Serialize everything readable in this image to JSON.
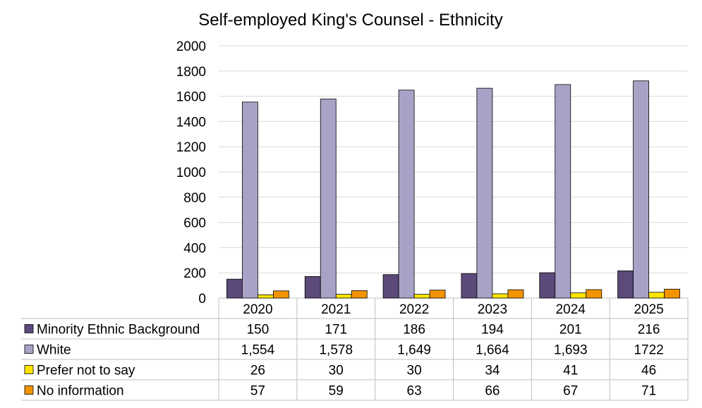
{
  "chart_data": {
    "type": "bar",
    "title": "Self-employed King's Counsel - Ethnicity",
    "categories": [
      "2020",
      "2021",
      "2022",
      "2023",
      "2024",
      "2025"
    ],
    "ylim": [
      0,
      2000
    ],
    "yticks": [
      "0",
      "200",
      "400",
      "600",
      "800",
      "1000",
      "1200",
      "1400",
      "1600",
      "1800",
      "2000"
    ],
    "grid": true,
    "legend": "data-table-left",
    "series": [
      {
        "name": "Minority Ethnic Background",
        "color": "#5b4a7a",
        "values": [
          150,
          171,
          186,
          194,
          201,
          216
        ],
        "labels": [
          "150",
          "171",
          "186",
          "194",
          "201",
          "216"
        ]
      },
      {
        "name": "White",
        "color": "#a8a3c6",
        "values": [
          1554,
          1578,
          1649,
          1664,
          1693,
          1722
        ],
        "labels": [
          "1,554",
          "1,578",
          "1,649",
          "1,664",
          "1,693",
          "1722"
        ]
      },
      {
        "name": "Prefer not to say",
        "color": "#ffe500",
        "values": [
          26,
          30,
          30,
          34,
          41,
          46
        ],
        "labels": [
          "26",
          "30",
          "30",
          "34",
          "41",
          "46"
        ]
      },
      {
        "name": "No information",
        "color": "#f29400",
        "values": [
          57,
          59,
          63,
          66,
          67,
          71
        ],
        "labels": [
          "57",
          "59",
          "63",
          "66",
          "67",
          "71"
        ]
      }
    ]
  }
}
